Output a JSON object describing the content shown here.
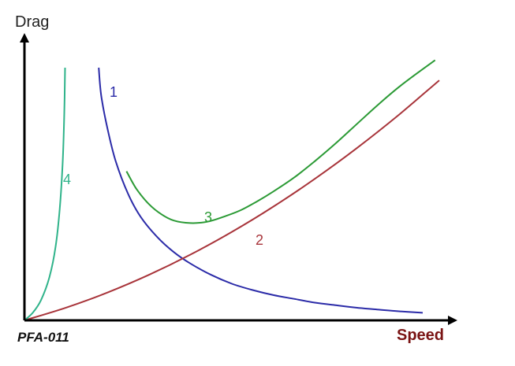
{
  "chart_data": {
    "type": "line",
    "ylabel": "Drag",
    "xlabel": "Speed",
    "code": "PFA-011",
    "xlim": [
      0,
      100
    ],
    "ylim": [
      0,
      100
    ],
    "ticks": "none",
    "grid": false,
    "legend": "none",
    "colors": {
      "axis": "#000000",
      "xlabel": "#7a1414",
      "curve_1": "#2b2ba8",
      "curve_2": "#a8343a",
      "curve_3": "#2b9a35",
      "curve_4": "#2fb38a"
    },
    "series": [
      {
        "label": "1",
        "color": "#2b2ba8",
        "x": [
          17.9,
          18.5,
          20,
          22,
          25,
          28,
          32,
          36,
          40,
          45,
          50,
          55,
          60,
          65,
          70,
          75,
          80,
          85,
          90,
          96
        ],
        "y": [
          100,
          89,
          76,
          63,
          50,
          41,
          33,
          27,
          22.5,
          18,
          14.5,
          12,
          10,
          8.5,
          7,
          6,
          5,
          4.3,
          3.6,
          3
        ]
      },
      {
        "label": "2",
        "color": "#a8343a",
        "x": [
          0,
          10,
          20,
          30,
          40,
          50,
          60,
          70,
          80,
          90,
          100
        ],
        "y": [
          0,
          5,
          11,
          18,
          26,
          35,
          45,
          56,
          68,
          81,
          95
        ]
      },
      {
        "label": "3",
        "color": "#2b9a35",
        "x": [
          24.6,
          27,
          30,
          33,
          36,
          40,
          44,
          48,
          52,
          56,
          60,
          65,
          70,
          75,
          80,
          85,
          90,
          94,
          99
        ],
        "y": [
          59,
          52,
          46,
          42,
          39.5,
          38.5,
          39,
          41,
          43.5,
          47,
          51,
          56.5,
          63,
          70,
          77.5,
          85,
          92,
          97,
          103
        ]
      },
      {
        "label": "4",
        "color": "#2fb38a",
        "x": [
          0,
          2,
          4,
          6,
          7.5,
          8.5,
          9.2,
          9.6,
          9.8
        ],
        "y": [
          0,
          3,
          8,
          17,
          29,
          44,
          62,
          82,
          100
        ]
      }
    ]
  }
}
